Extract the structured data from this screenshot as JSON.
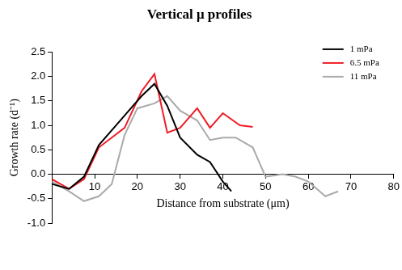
{
  "chart_data": {
    "type": "line",
    "title": "Vertical μ profiles",
    "x_label": "Distance from substrate (μm)",
    "y_label": "Growth rate (d⁻¹)",
    "xlim": [
      0,
      80
    ],
    "xticks": [
      10,
      20,
      30,
      40,
      50,
      60,
      70,
      80
    ],
    "ylim": [
      -1.0,
      2.5
    ],
    "yticks": [
      {
        "value": -1.0,
        "label": "-1.0"
      },
      -0.5,
      {
        "value": 0,
        "label": "0.0"
      },
      0.5,
      {
        "value": 1.0,
        "label": "1.0"
      },
      1.5,
      {
        "value": 2.0,
        "label": "2.0"
      },
      2.5
    ],
    "grid": false,
    "legend": "top right",
    "series": [
      {
        "name": "1 mPa",
        "color": "#000000",
        "x": [
          0,
          4,
          7.5,
          11,
          15,
          18,
          21,
          24,
          27,
          30,
          34,
          37,
          40,
          42
        ],
        "values": [
          -0.2,
          -0.3,
          -0.05,
          0.6,
          1.0,
          1.3,
          1.6,
          1.85,
          1.4,
          0.75,
          0.4,
          0.25,
          -0.15,
          -0.35
        ]
      },
      {
        "name": "6.5 mPa",
        "color": "#ee1c25",
        "x": [
          0,
          4,
          7.5,
          11,
          14,
          17,
          21,
          24,
          27,
          30,
          34,
          37,
          40,
          44,
          47
        ],
        "values": [
          -0.1,
          -0.3,
          -0.1,
          0.55,
          0.75,
          0.95,
          1.7,
          2.05,
          0.85,
          0.95,
          1.35,
          0.95,
          1.25,
          1.0,
          0.97
        ]
      },
      {
        "name": "11 mPa",
        "color": "#aaaaaa",
        "x": [
          0,
          4,
          7.5,
          11,
          14,
          17,
          20,
          24,
          27,
          30,
          34,
          37,
          40,
          43,
          47,
          50,
          54,
          57,
          60,
          64,
          67
        ],
        "values": [
          -0.15,
          -0.35,
          -0.55,
          -0.45,
          -0.2,
          0.8,
          1.35,
          1.45,
          1.6,
          1.3,
          1.1,
          0.7,
          0.75,
          0.75,
          0.55,
          -0.05,
          0.0,
          -0.05,
          -0.15,
          -0.45,
          -0.35
        ]
      }
    ]
  }
}
